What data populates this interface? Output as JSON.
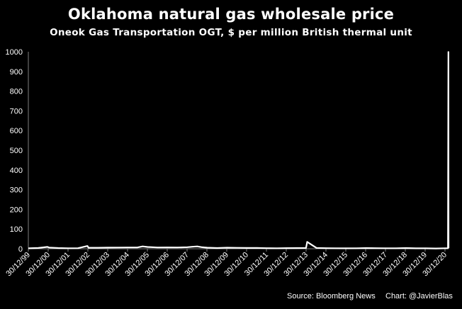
{
  "header": {
    "title": "Oklahoma natural gas wholesale price",
    "subtitle": "Oneok Gas Transportation OGT, $ per million British thermal unit"
  },
  "footer": {
    "source": "Source: Bloomberg News",
    "credit": "Chart: @JavierBlas"
  },
  "colors": {
    "background": "#000000",
    "line": "#ffffff",
    "axis": "#808080",
    "text": "#ffffff"
  },
  "chart_data": {
    "type": "line",
    "title": "Oklahoma natural gas wholesale price",
    "subtitle": "Oneok Gas Transportation OGT, $ per million British thermal unit",
    "xlabel": "",
    "ylabel": "",
    "ylim": [
      0,
      1000
    ],
    "yticks": [
      0,
      100,
      200,
      300,
      400,
      500,
      600,
      700,
      800,
      900,
      1000
    ],
    "xlim": [
      "1999-12-30",
      "2021-02-20"
    ],
    "xticks": [
      "30/12/99",
      "30/12/00",
      "30/12/01",
      "30/12/02",
      "30/12/03",
      "30/12/04",
      "30/12/05",
      "30/12/06",
      "30/12/07",
      "30/12/08",
      "30/12/09",
      "30/12/10",
      "30/12/11",
      "30/12/12",
      "30/12/13",
      "30/12/14",
      "30/12/15",
      "30/12/16",
      "30/12/17",
      "30/12/18",
      "30/12/19",
      "30/12/20"
    ],
    "grid": false,
    "legend": "none",
    "series": [
      {
        "x": [
          "1999-12-30",
          "2000-06-30",
          "2000-12-15",
          "2001-01-15",
          "2001-06-30",
          "2001-12-30",
          "2002-06-30",
          "2002-12-20",
          "2003-01-10",
          "2003-06-30",
          "2003-12-30",
          "2004-06-30",
          "2004-12-30",
          "2005-06-30",
          "2005-09-30",
          "2005-12-30",
          "2006-06-30",
          "2006-12-30",
          "2007-06-30",
          "2007-12-30",
          "2008-03-30",
          "2008-06-30",
          "2008-09-30",
          "2008-12-30",
          "2009-06-30",
          "2009-12-30",
          "2010-06-30",
          "2010-12-30",
          "2011-06-30",
          "2011-12-30",
          "2012-06-30",
          "2012-12-30",
          "2013-06-30",
          "2013-12-20",
          "2014-01-10",
          "2014-06-30",
          "2014-12-30",
          "2015-06-30",
          "2015-12-30",
          "2016-06-30",
          "2016-12-30",
          "2017-06-30",
          "2017-12-30",
          "2018-06-30",
          "2018-12-30",
          "2019-06-30",
          "2019-12-30",
          "2020-06-30",
          "2020-12-30",
          "2021-02-10",
          "2021-02-17",
          "2021-02-20"
        ],
        "y": [
          2.3,
          4.0,
          9.5,
          6.0,
          3.5,
          2.5,
          3.0,
          14.0,
          5.0,
          5.2,
          5.8,
          6.0,
          6.5,
          7.0,
          12.0,
          9.0,
          6.5,
          6.8,
          6.5,
          8.0,
          10.0,
          12.0,
          7.5,
          5.5,
          3.5,
          5.5,
          4.5,
          4.0,
          4.2,
          3.0,
          2.5,
          3.3,
          3.6,
          4.0,
          35.0,
          4.4,
          3.0,
          2.6,
          2.0,
          2.4,
          3.5,
          2.9,
          2.5,
          2.6,
          3.5,
          2.3,
          2.0,
          1.5,
          2.5,
          3.0,
          999.0,
          3.0
        ]
      }
    ]
  }
}
